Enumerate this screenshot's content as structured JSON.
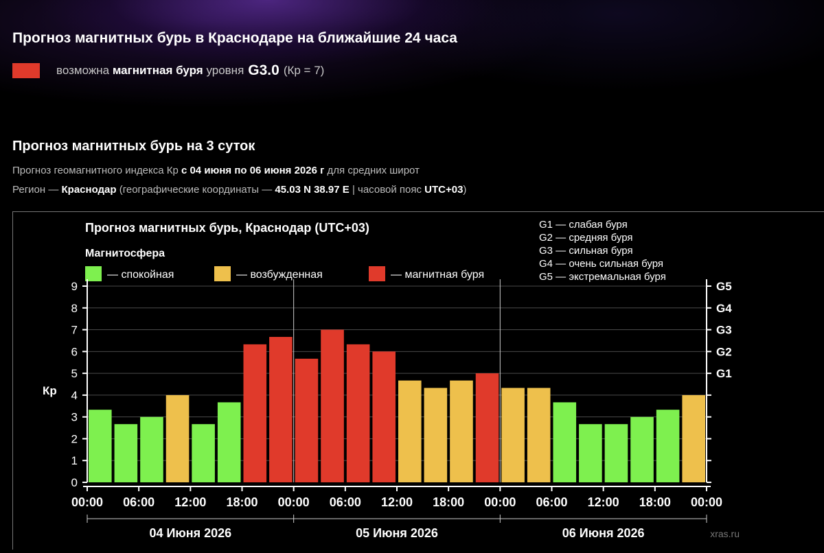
{
  "header": {
    "title": "Прогноз магнитных бурь в Краснодаре на ближайшие 24 часа",
    "now_prefix": "возможна",
    "now_bold": "магнитная буря",
    "now_level_word": "уровня",
    "now_level": "G3.0",
    "now_kp": "(Кр = 7)",
    "now_color": "#e03a2b"
  },
  "section": {
    "title": "Прогноз магнитных бурь на 3 суток",
    "line1_a": "Прогноз геомагнитного индекса Кр ",
    "line1_b": "с 04 июня по 06 июня 2026 г",
    "line1_c": " для средних широт",
    "line2_a": "Регион — ",
    "line2_b": "Краснодар",
    "line2_c": " (географические координаты — ",
    "line2_d": "45.03 N 38.97 E",
    "line2_e": " | часовой пояс ",
    "line2_f": "UTC+03",
    "line2_g": ")"
  },
  "chart_data": {
    "type": "bar",
    "title": "Прогноз магнитных бурь, Краснодар (UTC+03)",
    "legend_title": "Магнитосфера",
    "legend": [
      {
        "label": "— спокойная",
        "color": "#7ef04f"
      },
      {
        "label": "— возбужденная",
        "color": "#eec04c"
      },
      {
        "label": "— магнитная буря",
        "color": "#e03a2b"
      }
    ],
    "g_legend": [
      "G1 — слабая буря",
      "G2 — средняя буря",
      "G3 — сильная буря",
      "G4 — очень сильная буря",
      "G5 — экстремальная буря"
    ],
    "ylabel": "Кр",
    "ylim": [
      0,
      9
    ],
    "yticks": [
      0,
      1,
      2,
      3,
      4,
      5,
      6,
      7,
      8,
      9
    ],
    "right_ticks": [
      {
        "label": "G1",
        "value": 5
      },
      {
        "label": "G2",
        "value": 6
      },
      {
        "label": "G3",
        "value": 7
      },
      {
        "label": "G4",
        "value": 8
      },
      {
        "label": "G5",
        "value": 9
      }
    ],
    "xtick_labels": [
      "00:00",
      "06:00",
      "12:00",
      "18:00",
      "00:00",
      "06:00",
      "12:00",
      "18:00",
      "00:00",
      "06:00",
      "12:00",
      "18:00",
      "00:00"
    ],
    "days": [
      "04 Июня 2026",
      "05 Июня 2026",
      "06 Июня 2026"
    ],
    "values": [
      3.33,
      2.67,
      3.0,
      4.0,
      2.67,
      3.67,
      6.33,
      6.67,
      5.67,
      7.0,
      6.33,
      6.0,
      4.67,
      4.33,
      4.67,
      5.0,
      4.33,
      4.33,
      3.67,
      2.67,
      2.67,
      3.0,
      3.33,
      4.0
    ],
    "levels": [
      "calm",
      "calm",
      "calm",
      "active",
      "calm",
      "calm",
      "storm",
      "storm",
      "storm",
      "storm",
      "storm",
      "storm",
      "active",
      "active",
      "active",
      "storm",
      "active",
      "active",
      "calm",
      "calm",
      "calm",
      "calm",
      "calm",
      "active"
    ],
    "level_colors": {
      "calm": "#7ef04f",
      "active": "#eec04c",
      "storm": "#e03a2b"
    },
    "grid": true,
    "watermark": "xras.ru"
  }
}
